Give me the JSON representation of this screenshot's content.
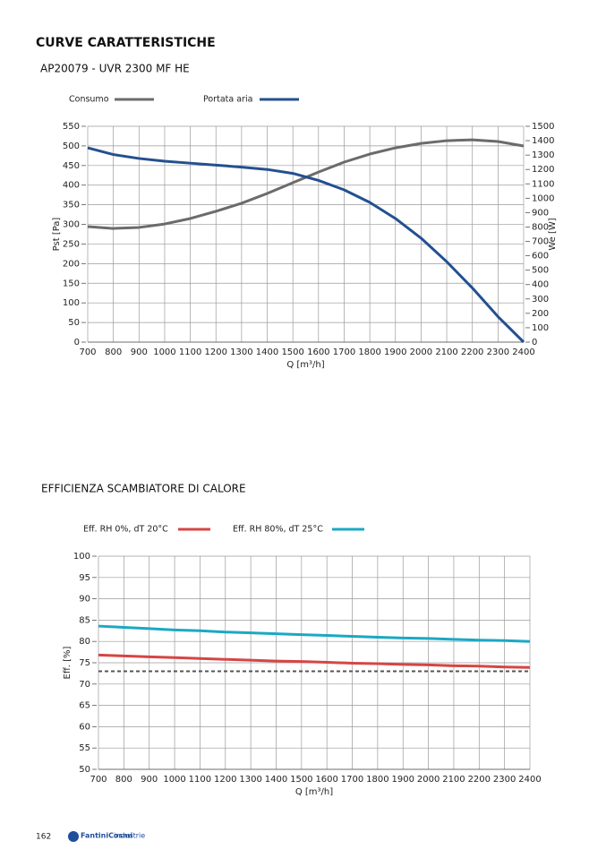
{
  "title": "CURVE CARATTERISTICHE",
  "page_number": "162",
  "logo": "FantiniCosmi",
  "logo_suffix": "industrie",
  "chart_data": [
    {
      "type": "line",
      "title": "AP20079 - UVR 2300 MF HE",
      "x": [
        700,
        800,
        900,
        1000,
        1100,
        1200,
        1300,
        1400,
        1500,
        1600,
        1700,
        1800,
        1900,
        2000,
        2100,
        2200,
        2300,
        2400
      ],
      "series": [
        {
          "name": "Consumo",
          "color": "#6b6b6b",
          "axis": "y2",
          "values": [
            803,
            790,
            797,
            821,
            859,
            909,
            965,
            1033,
            1108,
            1182,
            1251,
            1307,
            1350,
            1381,
            1400,
            1406,
            1394,
            1363
          ]
        },
        {
          "name": "Portata aria",
          "color": "#23508f",
          "values": [
            495,
            478,
            468,
            461,
            456,
            451,
            446,
            440,
            430,
            412,
            388,
            356,
            315,
            265,
            205,
            138,
            65,
            0
          ]
        }
      ],
      "xlabel": "Q [m³/h]",
      "ylabel": "Pst [Pa]",
      "y2label": "We [W]",
      "xlim": [
        700,
        2400
      ],
      "xticks": [
        700,
        800,
        900,
        1000,
        1100,
        1200,
        1300,
        1400,
        1500,
        1600,
        1700,
        1800,
        1900,
        2000,
        2100,
        2200,
        2300,
        2400
      ],
      "ylim": [
        0,
        550
      ],
      "yticks": [
        0,
        50,
        100,
        150,
        200,
        250,
        300,
        350,
        400,
        450,
        500,
        550
      ],
      "y2lim": [
        0,
        1500
      ],
      "y2ticks": [
        0,
        100,
        200,
        300,
        400,
        500,
        600,
        700,
        800,
        900,
        1000,
        1100,
        1200,
        1300,
        1400,
        1500
      ],
      "grid": true
    },
    {
      "type": "line",
      "title": "EFFICIENZA SCAMBIATORE DI CALORE",
      "x": [
        700,
        800,
        900,
        1000,
        1100,
        1200,
        1300,
        1400,
        1500,
        1600,
        1700,
        1800,
        1900,
        2000,
        2100,
        2200,
        2300,
        2400
      ],
      "series": [
        {
          "name": "Eff. RH 0%, dT 20°C",
          "color": "#d64545",
          "values": [
            76.8,
            76.6,
            76.4,
            76.2,
            76.0,
            75.8,
            75.6,
            75.4,
            75.3,
            75.1,
            74.9,
            74.8,
            74.6,
            74.5,
            74.3,
            74.2,
            74.0,
            73.9
          ]
        },
        {
          "name": "Eff. RH 80%, dT 25°C",
          "color": "#1ba8c4",
          "values": [
            83.6,
            83.3,
            83.0,
            82.7,
            82.5,
            82.2,
            82.0,
            81.8,
            81.6,
            81.4,
            81.2,
            81.0,
            80.8,
            80.7,
            80.5,
            80.3,
            80.2,
            80.0
          ]
        }
      ],
      "hlines": [
        {
          "value": 73,
          "color": "#555555",
          "dashed": true
        }
      ],
      "xlabel": "Q [m³/h]",
      "ylabel": "Eff. [%]",
      "xlim": [
        700,
        2400
      ],
      "xticks": [
        700,
        800,
        900,
        1000,
        1100,
        1200,
        1300,
        1400,
        1500,
        1600,
        1700,
        1800,
        1900,
        2000,
        2100,
        2200,
        2300,
        2400
      ],
      "ylim": [
        50,
        100
      ],
      "yticks": [
        50,
        55,
        60,
        65,
        70,
        75,
        80,
        85,
        90,
        95,
        100
      ],
      "grid": true
    }
  ]
}
